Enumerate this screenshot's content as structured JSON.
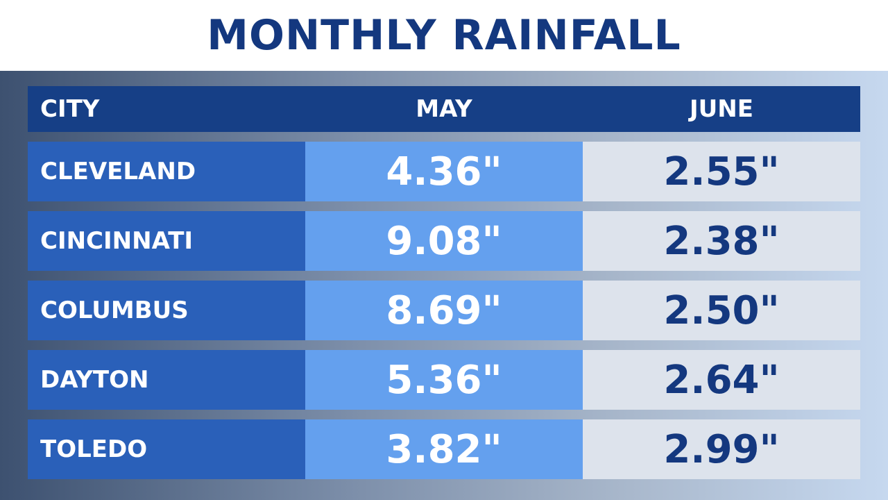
{
  "title": "MONTHLY RAINFALL",
  "colors": {
    "title": "#14387f",
    "header_bg": "#163f86",
    "city_bg": "#2a60b9",
    "may_bg": "#64a0ee",
    "june_bg": "#dde3ec",
    "june_text": "#14387f"
  },
  "chart_data": {
    "type": "table",
    "title": "MONTHLY RAINFALL",
    "columns": [
      "CITY",
      "MAY",
      "JUNE"
    ],
    "units": "inches",
    "rows": [
      {
        "city": "CLEVELAND",
        "may": "4.36\"",
        "june": "2.55\""
      },
      {
        "city": "CINCINNATI",
        "may": "9.08\"",
        "june": "2.38\""
      },
      {
        "city": "COLUMBUS",
        "may": "8.69\"",
        "june": "2.50\""
      },
      {
        "city": "DAYTON",
        "may": "5.36\"",
        "june": "2.64\""
      },
      {
        "city": "TOLEDO",
        "may": "3.82\"",
        "june": "2.99\""
      }
    ]
  }
}
